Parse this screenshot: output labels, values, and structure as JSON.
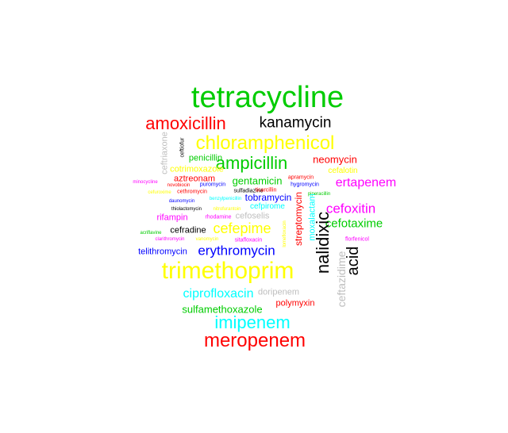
{
  "words": [
    {
      "text": "tetracycline",
      "color": "#00cc00"
    },
    {
      "text": "amoxicillin",
      "color": "#ff0000"
    },
    {
      "text": "kanamycin",
      "color": "#000000"
    },
    {
      "text": "chloramphenicol",
      "color": "#ffff00"
    },
    {
      "text": "ampicillin",
      "color": "#00cc00"
    },
    {
      "text": "ceftriaxone",
      "color": "#bebebe"
    },
    {
      "text": "ceftiofur",
      "color": "#000000"
    },
    {
      "text": "penicillin",
      "color": "#00cc00"
    },
    {
      "text": "neomycin",
      "color": "#ff0000"
    },
    {
      "text": "cefalotin",
      "color": "#ffff00"
    },
    {
      "text": "cotrimoxazole",
      "color": "#ffff00"
    },
    {
      "text": "aztreonam",
      "color": "#ff0000"
    },
    {
      "text": "gentamicin",
      "color": "#00cc00"
    },
    {
      "text": "apramycin",
      "color": "#ff0000"
    },
    {
      "text": "hygromycin",
      "color": "#0000ff"
    },
    {
      "text": "ertapenem",
      "color": "#ff00ff"
    },
    {
      "text": "minocycline",
      "color": "#ff00ff"
    },
    {
      "text": "novobiocin",
      "color": "#ff0000"
    },
    {
      "text": "puromycin",
      "color": "#0000ff"
    },
    {
      "text": "sulfadiazine",
      "color": "#000000"
    },
    {
      "text": "ticarcillin",
      "color": "#ff0000"
    },
    {
      "text": "cefuroxime",
      "color": "#ffff00"
    },
    {
      "text": "cethromycin",
      "color": "#ff0000"
    },
    {
      "text": "tobramycin",
      "color": "#0000ff"
    },
    {
      "text": "piperacillin",
      "color": "#00cc00"
    },
    {
      "text": "daunomycin",
      "color": "#0000ff"
    },
    {
      "text": "benzylpenicillin",
      "color": "#00ffff"
    },
    {
      "text": "cefoxitin",
      "color": "#ff00ff"
    },
    {
      "text": "thiolactomycin",
      "color": "#000000"
    },
    {
      "text": "nitrofurantoin",
      "color": "#ffff00"
    },
    {
      "text": "cefpirome",
      "color": "#00ffff"
    },
    {
      "text": "streptomycin",
      "color": "#ff0000"
    },
    {
      "text": "moxalactam",
      "color": "#00ffff"
    },
    {
      "text": "rifampin",
      "color": "#ff00ff"
    },
    {
      "text": "rhodamine",
      "color": "#ff00ff"
    },
    {
      "text": "cefoselis",
      "color": "#bebebe"
    },
    {
      "text": "cefotaxime",
      "color": "#00cc00"
    },
    {
      "text": "cefradine",
      "color": "#000000"
    },
    {
      "text": "cefepime",
      "color": "#ffff00"
    },
    {
      "text": "nalidixic",
      "color": "#000000"
    },
    {
      "text": "acid",
      "color": "#000000"
    },
    {
      "text": "ceftazidime",
      "color": "#bebebe"
    },
    {
      "text": "florfenicol",
      "color": "#ff00ff"
    },
    {
      "text": "acriflavine",
      "color": "#00cc00"
    },
    {
      "text": "clarithromycin",
      "color": "#ff00ff"
    },
    {
      "text": "vanomycin",
      "color": "#ffff00"
    },
    {
      "text": "sitafloxacin",
      "color": "#ff00ff"
    },
    {
      "text": "lomefloxacin",
      "color": "#ffff00"
    },
    {
      "text": "telithromycin",
      "color": "#0000ff"
    },
    {
      "text": "erythromycin",
      "color": "#0000ff"
    },
    {
      "text": "trimethoprim",
      "color": "#ffff00"
    },
    {
      "text": "ciprofloxacin",
      "color": "#00ffff"
    },
    {
      "text": "doripenem",
      "color": "#bebebe"
    },
    {
      "text": "sulfamethoxazole",
      "color": "#00cc00"
    },
    {
      "text": "polymyxin",
      "color": "#ff0000"
    },
    {
      "text": "imipenem",
      "color": "#00ffff"
    },
    {
      "text": "meropenem",
      "color": "#ff0000"
    }
  ]
}
